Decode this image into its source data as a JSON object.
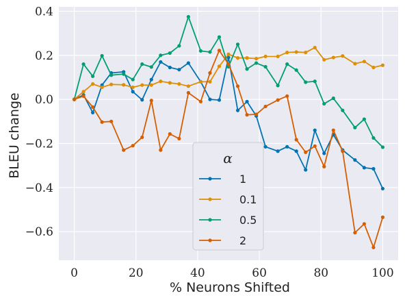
{
  "chart_data": {
    "type": "line",
    "xlabel": "% Neurons Shifted",
    "ylabel": "BLEU change",
    "xlim": [
      -5,
      105
    ],
    "ylim": [
      -0.73,
      0.42
    ],
    "x_ticks": [
      0,
      20,
      40,
      60,
      80,
      100
    ],
    "y_ticks": [
      0.4,
      0.2,
      0.0,
      -0.2,
      -0.4,
      -0.6
    ],
    "y_tick_labels": [
      "0.4",
      "0.2",
      "0.0",
      "−0.2",
      "−0.4",
      "−0.6"
    ],
    "grid": true,
    "legend": {
      "title": "α",
      "placement": "bottom-center"
    },
    "x": [
      0,
      3,
      6,
      9,
      12,
      16,
      19,
      22,
      25,
      28,
      31,
      34,
      37,
      41,
      44,
      47,
      50,
      53,
      56,
      59,
      62,
      66,
      69,
      72,
      75,
      78,
      81,
      84,
      87,
      91,
      94,
      97,
      100
    ],
    "series": [
      {
        "name": "1",
        "color": "#0173b2",
        "values": [
          0.0,
          0.02,
          -0.06,
          0.065,
          0.12,
          0.125,
          0.035,
          -0.002,
          0.09,
          0.17,
          0.145,
          0.135,
          0.165,
          0.08,
          0.0,
          -0.003,
          0.19,
          -0.05,
          -0.01,
          -0.075,
          -0.215,
          -0.235,
          -0.215,
          -0.235,
          -0.32,
          -0.14,
          -0.245,
          -0.16,
          -0.23,
          -0.275,
          -0.31,
          -0.315,
          -0.405
        ]
      },
      {
        "name": "0.1",
        "color": "#de8f05",
        "values": [
          0.0,
          0.035,
          0.07,
          0.055,
          0.068,
          0.066,
          0.055,
          0.065,
          0.065,
          0.082,
          0.075,
          0.07,
          0.06,
          0.08,
          0.08,
          0.15,
          0.205,
          0.188,
          0.188,
          0.185,
          0.195,
          0.195,
          0.213,
          0.215,
          0.213,
          0.235,
          0.18,
          0.19,
          0.197,
          0.162,
          0.172,
          0.145,
          0.155
        ]
      },
      {
        "name": "0.5",
        "color": "#029e73",
        "values": [
          0.0,
          0.16,
          0.105,
          0.198,
          0.11,
          0.115,
          0.09,
          0.16,
          0.147,
          0.2,
          0.21,
          0.243,
          0.375,
          0.22,
          0.215,
          0.283,
          0.148,
          0.25,
          0.138,
          0.165,
          0.148,
          0.063,
          0.16,
          0.133,
          0.078,
          0.082,
          -0.02,
          0.005,
          -0.05,
          -0.128,
          -0.09,
          -0.175,
          -0.217
        ]
      },
      {
        "name": "2",
        "color": "#d55e00",
        "values": [
          0.0,
          0.015,
          -0.035,
          -0.103,
          -0.1,
          -0.23,
          -0.21,
          -0.172,
          -0.005,
          -0.23,
          -0.157,
          -0.178,
          0.03,
          -0.01,
          0.12,
          0.222,
          0.16,
          0.06,
          -0.07,
          -0.068,
          -0.032,
          -0.003,
          0.015,
          -0.183,
          -0.24,
          -0.212,
          -0.305,
          -0.14,
          -0.235,
          -0.605,
          -0.565,
          -0.672,
          -0.535
        ]
      }
    ]
  }
}
